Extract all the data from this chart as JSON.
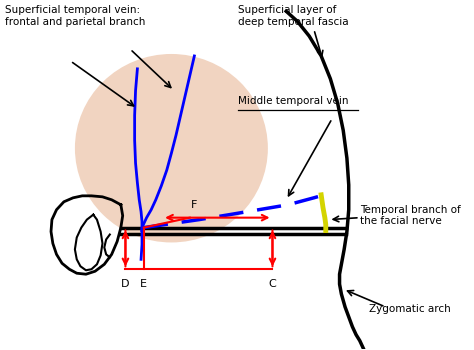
{
  "bg_color": "#ffffff",
  "skin_color": "#e8b898",
  "labels": {
    "superficial_vein": "Superficial temporal vein:\nfrontal and parietal branch",
    "deep_fascia": "Superficial layer of\ndeep temporal fascia",
    "mtv": "Middle temporal vein",
    "temporal_branch": "Temporal branch of\nthe facial nerve",
    "zygomatic": "Zygomatic arch",
    "C": "C",
    "D": "D",
    "E": "E",
    "F": "F"
  },
  "figsize": [
    4.74,
    3.5
  ],
  "dpi": 100
}
